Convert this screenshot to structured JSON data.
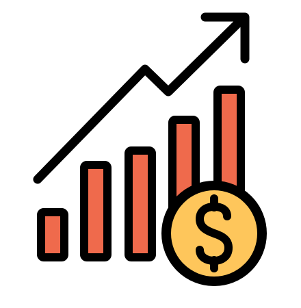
{
  "icon": {
    "name": "growth-chart-with-dollar-coin-icon",
    "bar_count": 5,
    "arrow_direction": "up-right"
  },
  "colors": {
    "background": "#ffffff",
    "outline": "#000000",
    "bar_fill": "#ef6a4c",
    "coin_fill": "#fec65b"
  },
  "coin": {
    "symbol": "$"
  }
}
